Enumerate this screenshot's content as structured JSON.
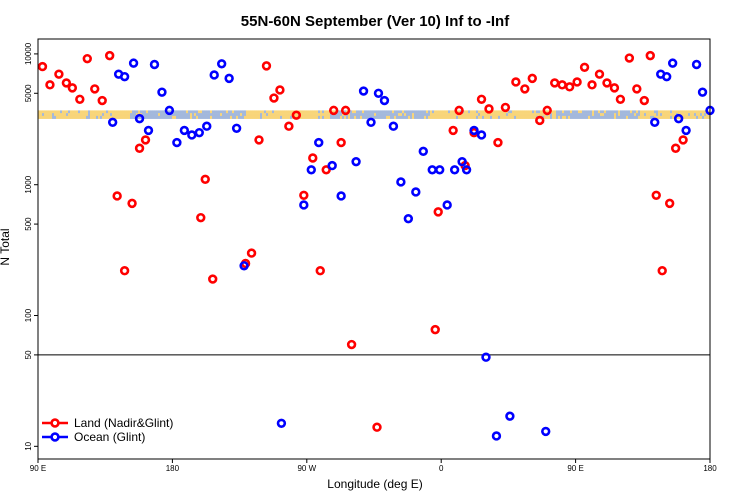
{
  "chart_data": {
    "type": "scatter",
    "title": "55N-60N September (Ver 10)   Inf to -Inf",
    "xlabel": "Longitude (deg E)",
    "ylabel": "N Total",
    "yscale": "log",
    "ylim": [
      8,
      13000
    ],
    "reference_line": 50,
    "x_ticks": [
      {
        "value": 0,
        "label": "90 E"
      },
      {
        "value": 90,
        "label": "180"
      },
      {
        "value": 180,
        "label": "90 W"
      },
      {
        "value": 270,
        "label": "0"
      },
      {
        "value": 360,
        "label": "90 E"
      },
      {
        "value": 450,
        "label": "180"
      }
    ],
    "xlim": [
      0,
      450
    ],
    "y_ticks": [
      {
        "value": 10,
        "label": "10"
      },
      {
        "value": 50,
        "label": "50"
      },
      {
        "value": 100,
        "label": "100"
      },
      {
        "value": 500,
        "label": "500"
      },
      {
        "value": 1000,
        "label": "1000"
      },
      {
        "value": 5000,
        "label": "5000"
      },
      {
        "value": 10000,
        "label": "10000"
      }
    ],
    "land_band": {
      "ymin": 3200,
      "ymax": 3700
    },
    "series": [
      {
        "name": "Land (Nadir&Glint)",
        "color": "#ff0000",
        "points": [
          [
            3,
            8000
          ],
          [
            8,
            5800
          ],
          [
            14,
            7000
          ],
          [
            19,
            6000
          ],
          [
            23,
            5500
          ],
          [
            28,
            4500
          ],
          [
            33,
            9200
          ],
          [
            38,
            5400
          ],
          [
            43,
            4400
          ],
          [
            48,
            9700
          ],
          [
            53,
            820
          ],
          [
            58,
            220
          ],
          [
            63,
            720
          ],
          [
            68,
            1900
          ],
          [
            72,
            2200
          ],
          [
            109,
            560
          ],
          [
            112,
            1100
          ],
          [
            117,
            190
          ],
          [
            139,
            250
          ],
          [
            143,
            300
          ],
          [
            148,
            2200
          ],
          [
            153,
            8100
          ],
          [
            158,
            4600
          ],
          [
            162,
            5300
          ],
          [
            168,
            2800
          ],
          [
            173,
            3400
          ],
          [
            178,
            830
          ],
          [
            184,
            1600
          ],
          [
            189,
            220
          ],
          [
            193,
            1300
          ],
          [
            198,
            3700
          ],
          [
            203,
            2100
          ],
          [
            206,
            3700
          ],
          [
            210,
            60
          ],
          [
            227,
            14
          ],
          [
            266,
            78
          ],
          [
            268,
            620
          ],
          [
            278,
            2600
          ],
          [
            282,
            3700
          ],
          [
            286,
            1400
          ],
          [
            292,
            2500
          ],
          [
            297,
            4500
          ],
          [
            302,
            3800
          ],
          [
            308,
            2100
          ],
          [
            313,
            3900
          ],
          [
            320,
            6100
          ],
          [
            326,
            5400
          ],
          [
            331,
            6500
          ],
          [
            336,
            3100
          ],
          [
            341,
            3700
          ],
          [
            346,
            6000
          ],
          [
            351,
            5800
          ],
          [
            356,
            5600
          ],
          [
            361,
            6100
          ],
          [
            366,
            7900
          ],
          [
            371,
            5800
          ],
          [
            376,
            7000
          ],
          [
            381,
            6000
          ],
          [
            386,
            5500
          ],
          [
            390,
            4500
          ],
          [
            396,
            9300
          ],
          [
            401,
            5400
          ],
          [
            406,
            4400
          ],
          [
            410,
            9700
          ],
          [
            414,
            830
          ],
          [
            418,
            220
          ],
          [
            423,
            720
          ],
          [
            427,
            1900
          ],
          [
            432,
            2200
          ]
        ]
      },
      {
        "name": "Ocean (Glint)",
        "color": "#0000ff",
        "points": [
          [
            50,
            3000
          ],
          [
            54,
            7000
          ],
          [
            58,
            6700
          ],
          [
            64,
            8500
          ],
          [
            68,
            3200
          ],
          [
            74,
            2600
          ],
          [
            78,
            8300
          ],
          [
            83,
            5100
          ],
          [
            88,
            3700
          ],
          [
            93,
            2100
          ],
          [
            98,
            2600
          ],
          [
            103,
            2400
          ],
          [
            108,
            2500
          ],
          [
            113,
            2800
          ],
          [
            118,
            6900
          ],
          [
            123,
            8400
          ],
          [
            128,
            6500
          ],
          [
            133,
            2700
          ],
          [
            138,
            240
          ],
          [
            163,
            15
          ],
          [
            178,
            700
          ],
          [
            183,
            1300
          ],
          [
            188,
            2100
          ],
          [
            197,
            1400
          ],
          [
            203,
            820
          ],
          [
            213,
            1500
          ],
          [
            218,
            5200
          ],
          [
            223,
            3000
          ],
          [
            228,
            5000
          ],
          [
            232,
            4400
          ],
          [
            238,
            2800
          ],
          [
            243,
            1050
          ],
          [
            248,
            550
          ],
          [
            253,
            880
          ],
          [
            258,
            1800
          ],
          [
            264,
            1300
          ],
          [
            269,
            1300
          ],
          [
            274,
            700
          ],
          [
            279,
            1300
          ],
          [
            284,
            1500
          ],
          [
            287,
            1300
          ],
          [
            292,
            2600
          ],
          [
            297,
            2400
          ],
          [
            300,
            48
          ],
          [
            307,
            12
          ],
          [
            316,
            17
          ],
          [
            340,
            13
          ],
          [
            413,
            3000
          ],
          [
            417,
            7000
          ],
          [
            421,
            6700
          ],
          [
            425,
            8500
          ],
          [
            429,
            3200
          ],
          [
            434,
            2600
          ],
          [
            441,
            8300
          ],
          [
            445,
            5100
          ],
          [
            450,
            3700
          ]
        ]
      }
    ],
    "legend_position": "bottom-left"
  }
}
